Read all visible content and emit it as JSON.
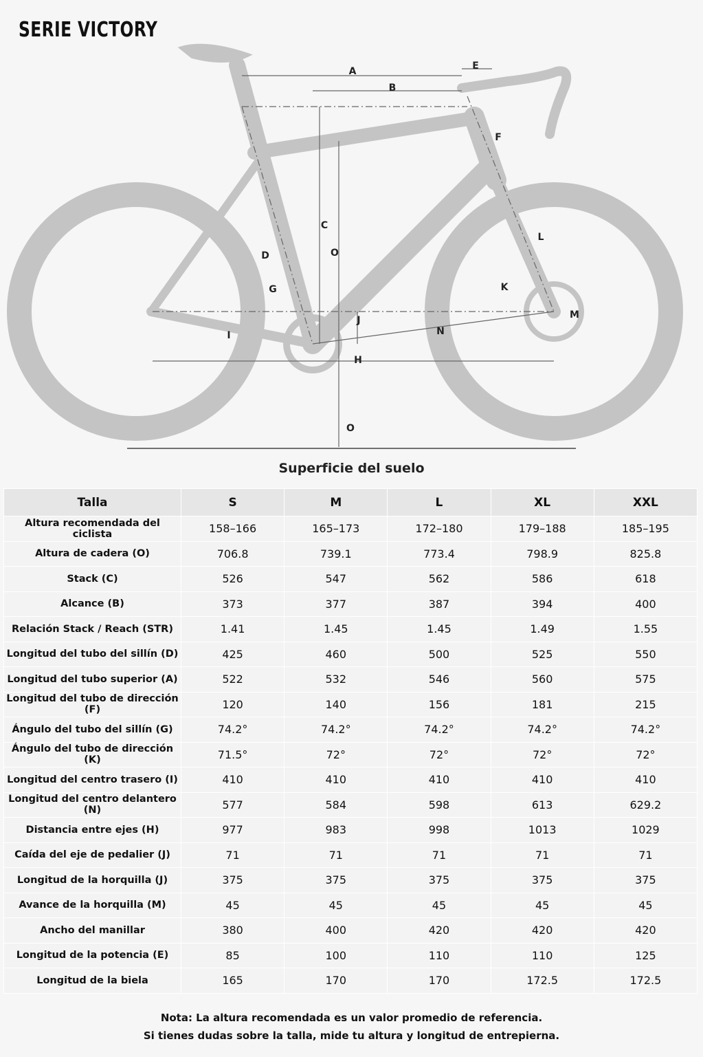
{
  "header": {
    "title": "SERIE VICTORY"
  },
  "diagram": {
    "labels": [
      "A",
      "E",
      "B",
      "F",
      "C",
      "O",
      "L",
      "D",
      "G",
      "K",
      "J",
      "M",
      "N",
      "I",
      "H",
      "O"
    ],
    "caption": "Superficie del suelo"
  },
  "table": {
    "header": [
      "Talla",
      "S",
      "M",
      "L",
      "XL",
      "XXL"
    ],
    "rows": [
      [
        "Altura recomendada del ciclista",
        "158–166",
        "165–173",
        "172–180",
        "179–188",
        "185–195"
      ],
      [
        "Altura de cadera (O)",
        "706.8",
        "739.1",
        "773.4",
        "798.9",
        "825.8"
      ],
      [
        "Stack (C)",
        "526",
        "547",
        "562",
        "586",
        "618"
      ],
      [
        "Alcance (B)",
        "373",
        "377",
        "387",
        "394",
        "400"
      ],
      [
        "Relación Stack / Reach (STR)",
        "1.41",
        "1.45",
        "1.45",
        "1.49",
        "1.55"
      ],
      [
        "Longitud del tubo del sillín (D)",
        "425",
        "460",
        "500",
        "525",
        "550"
      ],
      [
        "Longitud del tubo superior (A)",
        "522",
        "532",
        "546",
        "560",
        "575"
      ],
      [
        "Longitud del tubo de dirección (F)",
        "120",
        "140",
        "156",
        "181",
        "215"
      ],
      [
        "Ángulo del tubo del sillín (G)",
        "74.2°",
        "74.2°",
        "74.2°",
        "74.2°",
        "74.2°"
      ],
      [
        "Ángulo del tubo de dirección (K)",
        "71.5°",
        "72°",
        "72°",
        "72°",
        "72°"
      ],
      [
        "Longitud del centro trasero (I)",
        "410",
        "410",
        "410",
        "410",
        "410"
      ],
      [
        "Longitud del centro delantero (N)",
        "577",
        "584",
        "598",
        "613",
        "629.2"
      ],
      [
        "Distancia entre ejes (H)",
        "977",
        "983",
        "998",
        "1013",
        "1029"
      ],
      [
        "Caída del eje de pedalier (J)",
        "71",
        "71",
        "71",
        "71",
        "71"
      ],
      [
        "Longitud de la horquilla (J)",
        "375",
        "375",
        "375",
        "375",
        "375"
      ],
      [
        "Avance de la horquilla (M)",
        "45",
        "45",
        "45",
        "45",
        "45"
      ],
      [
        "Ancho del manillar",
        "380",
        "400",
        "420",
        "420",
        "420"
      ],
      [
        "Longitud de la potencia (E)",
        "85",
        "100",
        "110",
        "110",
        "125"
      ],
      [
        "Longitud de la biela",
        "165",
        "170",
        "170",
        "172.5",
        "172.5"
      ]
    ]
  },
  "notes": [
    "Nota: La altura recomendada es un valor promedio de referencia.",
    "Si tienes dudas sobre la talla, mide tu altura y longitud de entrepierna."
  ]
}
